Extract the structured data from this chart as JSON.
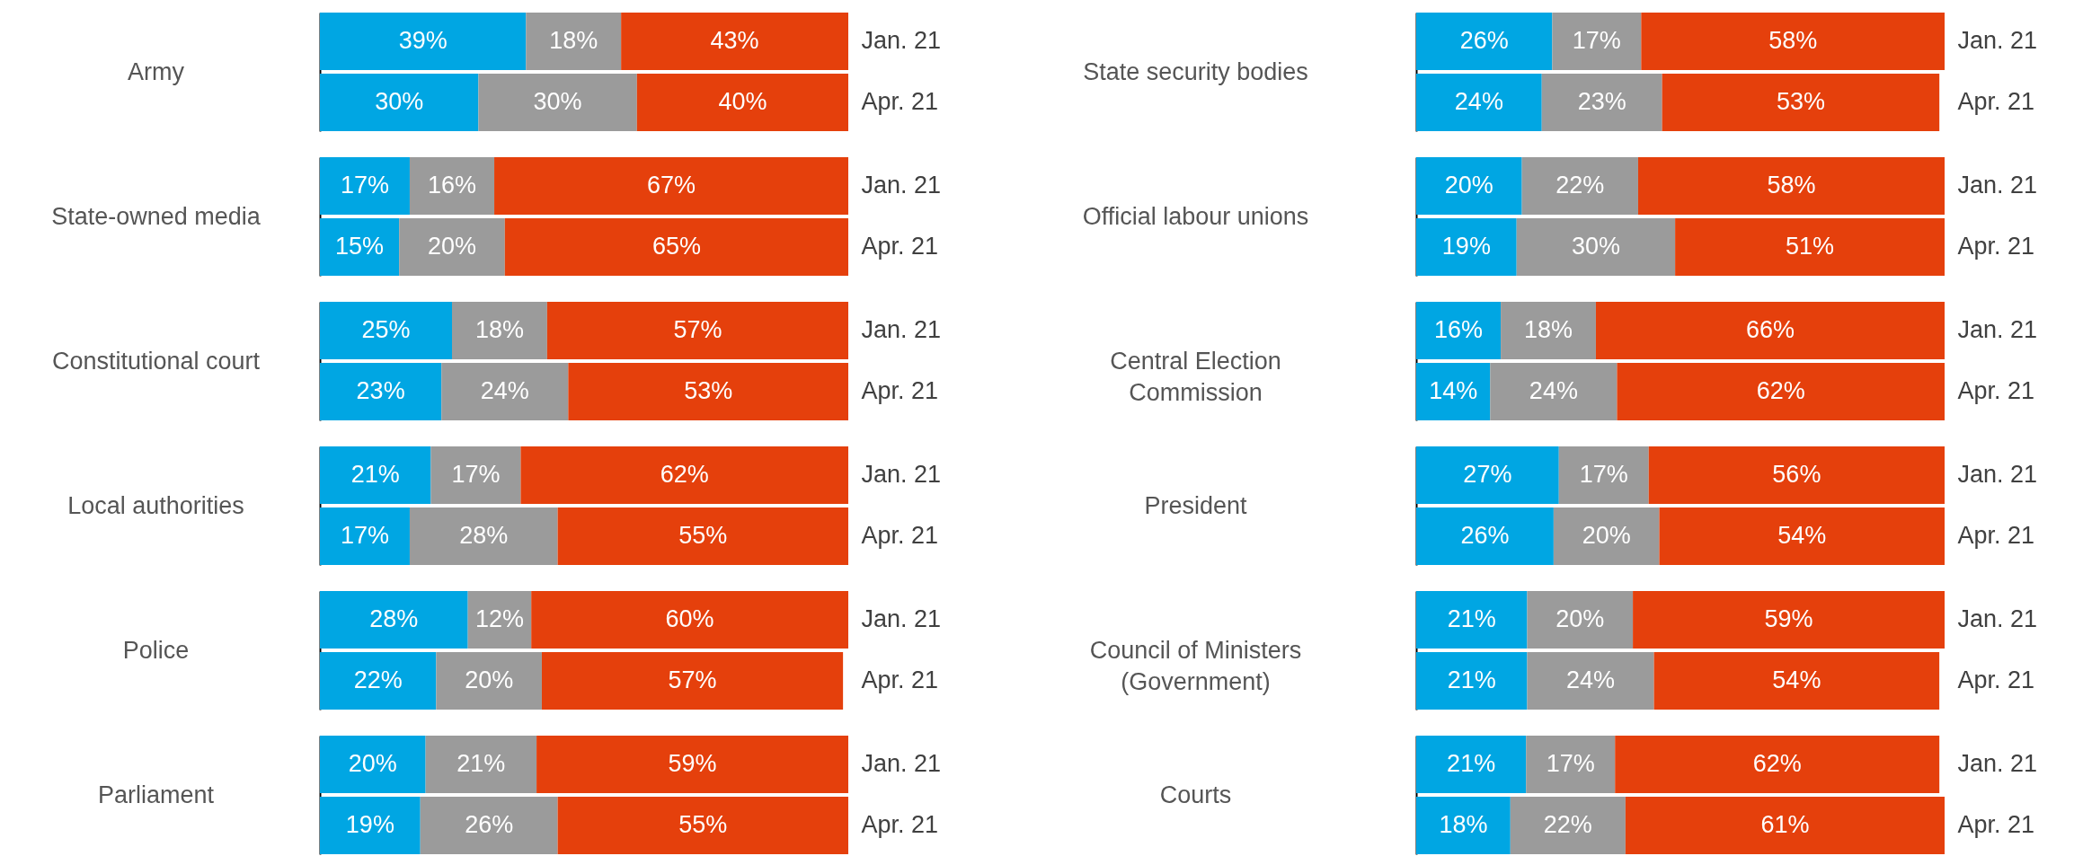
{
  "chart_data": [
    {
      "type": "bar",
      "orientation": "horizontal",
      "stacked": true,
      "ylabel": "Army",
      "categories": [
        "Jan. 21",
        "Apr. 21"
      ],
      "xlim": [
        0,
        100
      ],
      "tick_labels": "y",
      "series": [
        {
          "color": "#00a6e3",
          "values": [
            39,
            30
          ],
          "value_labels": [
            "39%",
            "30%"
          ]
        },
        {
          "color": "#9b9b9b",
          "values": [
            18,
            30
          ],
          "value_labels": [
            "18%",
            "30%"
          ]
        },
        {
          "color": "#e5400c",
          "values": [
            43,
            40
          ],
          "value_labels": [
            "43%",
            "40%"
          ]
        }
      ]
    },
    {
      "type": "bar",
      "orientation": "horizontal",
      "stacked": true,
      "ylabel": "State-owned media",
      "categories": [
        "Jan. 21",
        "Apr. 21"
      ],
      "xlim": [
        0,
        100
      ],
      "tick_labels": "y",
      "series": [
        {
          "color": "#00a6e3",
          "values": [
            17,
            15
          ],
          "value_labels": [
            "17%",
            "15%"
          ]
        },
        {
          "color": "#9b9b9b",
          "values": [
            16,
            20
          ],
          "value_labels": [
            "16%",
            "20%"
          ]
        },
        {
          "color": "#e5400c",
          "values": [
            67,
            65
          ],
          "value_labels": [
            "67%",
            "65%"
          ]
        }
      ]
    },
    {
      "type": "bar",
      "orientation": "horizontal",
      "stacked": true,
      "ylabel": "Constitutional court",
      "categories": [
        "Jan. 21",
        "Apr. 21"
      ],
      "xlim": [
        0,
        100
      ],
      "tick_labels": "y",
      "series": [
        {
          "color": "#00a6e3",
          "values": [
            25,
            23
          ],
          "value_labels": [
            "25%",
            "23%"
          ]
        },
        {
          "color": "#9b9b9b",
          "values": [
            18,
            24
          ],
          "value_labels": [
            "18%",
            "24%"
          ]
        },
        {
          "color": "#e5400c",
          "values": [
            57,
            53
          ],
          "value_labels": [
            "57%",
            "53%"
          ]
        }
      ]
    },
    {
      "type": "bar",
      "orientation": "horizontal",
      "stacked": true,
      "ylabel": "Local authorities",
      "categories": [
        "Jan. 21",
        "Apr. 21"
      ],
      "xlim": [
        0,
        100
      ],
      "tick_labels": "y",
      "series": [
        {
          "color": "#00a6e3",
          "values": [
            21,
            17
          ],
          "value_labels": [
            "21%",
            "17%"
          ]
        },
        {
          "color": "#9b9b9b",
          "values": [
            17,
            28
          ],
          "value_labels": [
            "17%",
            "28%"
          ]
        },
        {
          "color": "#e5400c",
          "values": [
            62,
            55
          ],
          "value_labels": [
            "62%",
            "55%"
          ]
        }
      ]
    },
    {
      "type": "bar",
      "orientation": "horizontal",
      "stacked": true,
      "ylabel": "Police",
      "categories": [
        "Jan. 21",
        "Apr. 21"
      ],
      "xlim": [
        0,
        100
      ],
      "tick_labels": "y",
      "series": [
        {
          "color": "#00a6e3",
          "values": [
            28,
            22
          ],
          "value_labels": [
            "28%",
            "22%"
          ]
        },
        {
          "color": "#9b9b9b",
          "values": [
            12,
            20
          ],
          "value_labels": [
            "12%",
            "20%"
          ]
        },
        {
          "color": "#e5400c",
          "values": [
            60,
            57
          ],
          "value_labels": [
            "60%",
            "57%"
          ]
        }
      ]
    },
    {
      "type": "bar",
      "orientation": "horizontal",
      "stacked": true,
      "ylabel": "Parliament",
      "categories": [
        "Jan. 21",
        "Apr. 21"
      ],
      "xlim": [
        0,
        100
      ],
      "tick_labels": "y",
      "series": [
        {
          "color": "#00a6e3",
          "values": [
            20,
            19
          ],
          "value_labels": [
            "20%",
            "19%"
          ]
        },
        {
          "color": "#9b9b9b",
          "values": [
            21,
            26
          ],
          "value_labels": [
            "21%",
            "26%"
          ]
        },
        {
          "color": "#e5400c",
          "values": [
            59,
            55
          ],
          "value_labels": [
            "59%",
            "55%"
          ]
        }
      ]
    },
    {
      "type": "bar",
      "orientation": "horizontal",
      "stacked": true,
      "ylabel": "State security bodies",
      "categories": [
        "Jan. 21",
        "Apr. 21"
      ],
      "xlim": [
        0,
        101
      ],
      "tick_labels": "y",
      "series": [
        {
          "color": "#00a6e3",
          "values": [
            26,
            24
          ],
          "value_labels": [
            "26%",
            "24%"
          ]
        },
        {
          "color": "#9b9b9b",
          "values": [
            17,
            23
          ],
          "value_labels": [
            "17%",
            "23%"
          ]
        },
        {
          "color": "#e5400c",
          "values": [
            58,
            53
          ],
          "value_labels": [
            "58%",
            "53%"
          ]
        }
      ]
    },
    {
      "type": "bar",
      "orientation": "horizontal",
      "stacked": true,
      "ylabel": "Official labour unions",
      "categories": [
        "Jan. 21",
        "Apr. 21"
      ],
      "xlim": [
        0,
        100
      ],
      "tick_labels": "y",
      "series": [
        {
          "color": "#00a6e3",
          "values": [
            20,
            19
          ],
          "value_labels": [
            "20%",
            "19%"
          ]
        },
        {
          "color": "#9b9b9b",
          "values": [
            22,
            30
          ],
          "value_labels": [
            "22%",
            "30%"
          ]
        },
        {
          "color": "#e5400c",
          "values": [
            58,
            51
          ],
          "value_labels": [
            "58%",
            "51%"
          ]
        }
      ]
    },
    {
      "type": "bar",
      "orientation": "horizontal",
      "stacked": true,
      "ylabel": "Central Election Commission",
      "categories": [
        "Jan. 21",
        "Apr. 21"
      ],
      "xlim": [
        0,
        100
      ],
      "tick_labels": "y",
      "series": [
        {
          "color": "#00a6e3",
          "values": [
            16,
            14
          ],
          "value_labels": [
            "16%",
            "14%"
          ]
        },
        {
          "color": "#9b9b9b",
          "values": [
            18,
            24
          ],
          "value_labels": [
            "18%",
            "24%"
          ]
        },
        {
          "color": "#e5400c",
          "values": [
            66,
            62
          ],
          "value_labels": [
            "66%",
            "62%"
          ]
        }
      ]
    },
    {
      "type": "bar",
      "orientation": "horizontal",
      "stacked": true,
      "ylabel": "President",
      "categories": [
        "Jan. 21",
        "Apr. 21"
      ],
      "xlim": [
        0,
        100
      ],
      "tick_labels": "y",
      "series": [
        {
          "color": "#00a6e3",
          "values": [
            27,
            26
          ],
          "value_labels": [
            "27%",
            "26%"
          ]
        },
        {
          "color": "#9b9b9b",
          "values": [
            17,
            20
          ],
          "value_labels": [
            "17%",
            "20%"
          ]
        },
        {
          "color": "#e5400c",
          "values": [
            56,
            54
          ],
          "value_labels": [
            "56%",
            "54%"
          ]
        }
      ]
    },
    {
      "type": "bar",
      "orientation": "horizontal",
      "stacked": true,
      "ylabel": "Council of Ministers (Government)",
      "categories": [
        "Jan. 21",
        "Apr. 21"
      ],
      "xlim": [
        0,
        100
      ],
      "tick_labels": "y",
      "series": [
        {
          "color": "#00a6e3",
          "values": [
            21,
            21
          ],
          "value_labels": [
            "21%",
            "21%"
          ]
        },
        {
          "color": "#9b9b9b",
          "values": [
            20,
            24
          ],
          "value_labels": [
            "20%",
            "24%"
          ]
        },
        {
          "color": "#e5400c",
          "values": [
            59,
            54
          ],
          "value_labels": [
            "59%",
            "54%"
          ]
        }
      ]
    },
    {
      "type": "bar",
      "orientation": "horizontal",
      "stacked": true,
      "ylabel": "Courts",
      "categories": [
        "Jan. 21",
        "Apr. 21"
      ],
      "xlim": [
        0,
        101
      ],
      "tick_labels": "y",
      "series": [
        {
          "color": "#00a6e3",
          "values": [
            21,
            18
          ],
          "value_labels": [
            "21%",
            "18%"
          ]
        },
        {
          "color": "#9b9b9b",
          "values": [
            17,
            22
          ],
          "value_labels": [
            "17%",
            "22%"
          ]
        },
        {
          "color": "#e5400c",
          "values": [
            62,
            61
          ],
          "value_labels": [
            "62%",
            "61%"
          ]
        }
      ]
    }
  ]
}
